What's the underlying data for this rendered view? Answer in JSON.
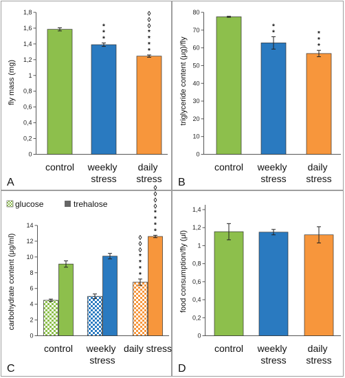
{
  "chart_data": [
    {
      "panel": "A",
      "type": "bar",
      "categories": [
        "control",
        "weekly stress",
        "daily stress"
      ],
      "values": [
        1.585,
        1.39,
        1.245
      ],
      "errors": [
        0.02,
        0.022,
        0.015
      ],
      "colors": [
        "#8dbf4c",
        "#2a7ac0",
        "#f7963c"
      ],
      "significance": [
        [],
        [
          "*",
          "*",
          "*"
        ],
        [
          "*",
          "*",
          "*",
          "*",
          "◊",
          "◊",
          "◊"
        ]
      ],
      "ylabel": "fly mass (mg)",
      "ylim": [
        0,
        1.8
      ],
      "yticks": [
        "0",
        "0,2",
        "0,4",
        "0,6",
        "0,8",
        "1",
        "1,2",
        "1,4",
        "1,6",
        "1,8"
      ]
    },
    {
      "panel": "B",
      "type": "bar",
      "categories": [
        "control",
        "weekly stress",
        "daily stress"
      ],
      "values": [
        77.5,
        62.8,
        56.8
      ],
      "errors": [
        0.3,
        3.5,
        1.8
      ],
      "colors": [
        "#8dbf4c",
        "#2a7ac0",
        "#f7963c"
      ],
      "significance": [
        [],
        [
          "*",
          "*"
        ],
        [
          "*",
          "*",
          "*"
        ]
      ],
      "ylabel": "triglyceride content (μg)/fly",
      "ylim": [
        0,
        80
      ],
      "yticks": [
        "0",
        "10",
        "20",
        "30",
        "40",
        "50",
        "60",
        "70",
        "80"
      ]
    },
    {
      "panel": "C",
      "type": "bar",
      "categories": [
        "control",
        "weekly stress",
        "daily stress"
      ],
      "series": [
        {
          "name": "glucose",
          "values": [
            4.5,
            5.0,
            6.8
          ],
          "errors": [
            0.15,
            0.3,
            0.4
          ],
          "pattern": "checkered"
        },
        {
          "name": "trehalose",
          "values": [
            9.1,
            10.1,
            12.6
          ],
          "errors": [
            0.4,
            0.35,
            0.15
          ],
          "pattern": "solid"
        }
      ],
      "colors": [
        "#8dbf4c",
        "#2a7ac0",
        "#f7963c"
      ],
      "significance": {
        "glucose": [
          [],
          [],
          [
            "*",
            "*",
            "*",
            "*",
            "◊",
            "◊",
            "◊"
          ]
        ],
        "trehalose": [
          [],
          [],
          [
            "*",
            "*",
            "*",
            "*",
            "◊",
            "◊",
            "◊",
            "◊"
          ]
        ]
      },
      "ylabel": "carbohydrate content  (μg/ml)",
      "ylim": [
        0,
        14
      ],
      "yticks": [
        "0",
        "2",
        "4",
        "6",
        "8",
        "10",
        "12",
        "14"
      ],
      "legend": "top-left"
    },
    {
      "panel": "D",
      "type": "bar",
      "categories": [
        "control",
        "weekly stress",
        "daily stress"
      ],
      "values": [
        1.155,
        1.15,
        1.12
      ],
      "errors": [
        0.09,
        0.03,
        0.09
      ],
      "colors": [
        "#8dbf4c",
        "#2a7ac0",
        "#f7963c"
      ],
      "significance": [
        [],
        [],
        []
      ],
      "ylabel": "food consumption/fly (μl)",
      "ylim": [
        0,
        1.4
      ],
      "yticks": [
        "0",
        "0,2",
        "0,4",
        "0,6",
        "0,8",
        "1",
        "1,2",
        "1,4"
      ]
    }
  ]
}
